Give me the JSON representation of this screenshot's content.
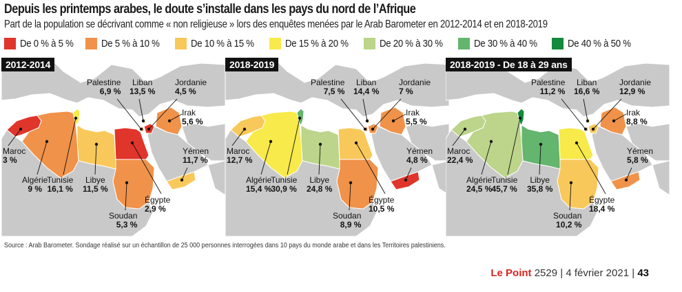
{
  "header": {
    "title": "Depuis les printemps arabes, le doute s’installe dans les pays du nord de l’Afrique",
    "subtitle": "Part de la population se décrivant comme « non religieuse » lors des enquêtes menées par le Arab Barometer en 2012-2014 et en 2018-2019"
  },
  "legend": [
    {
      "label": "De 0 % à 5 %",
      "color": "#e0352b"
    },
    {
      "label": "De 5 % à 10 %",
      "color": "#f0924a"
    },
    {
      "label": "De 10 % à 15 %",
      "color": "#f8c85a"
    },
    {
      "label": "De 15 % à 20 %",
      "color": "#f7ea4a"
    },
    {
      "label": "De 20 % à 30 %",
      "color": "#bcd58a"
    },
    {
      "label": "De 30 % à 40 %",
      "color": "#64b56e"
    },
    {
      "label": "De 40 % à 50 %",
      "color": "#138a3c"
    }
  ],
  "maps": [
    {
      "title": "2012-2014",
      "countries": {
        "maroc": {
          "name": "Maroc",
          "value": "3 %",
          "color": "#e0352b"
        },
        "algerie": {
          "name": "Algérie",
          "value": "9 %",
          "color": "#f0924a"
        },
        "tunisie": {
          "name": "Tunisie",
          "value": "16,1 %",
          "color": "#f7ea4a"
        },
        "libye": {
          "name": "Libye",
          "value": "11,5 %",
          "color": "#f8c85a"
        },
        "egypte": {
          "name": "Égypte",
          "value": "2,9 %",
          "color": "#e0352b"
        },
        "soudan": {
          "name": "Soudan",
          "value": "5,3 %",
          "color": "#f0924a"
        },
        "palestine": {
          "name": "Palestine",
          "value": "6,9 %",
          "color": "#f0924a"
        },
        "liban": {
          "name": "Liban",
          "value": "13,5 %",
          "color": "#f8c85a"
        },
        "jordanie": {
          "name": "Jordanie",
          "value": "4,5 %",
          "color": "#e0352b"
        },
        "irak": {
          "name": "Irak",
          "value": "5,6 %",
          "color": "#f0924a"
        },
        "yemen": {
          "name": "Yémen",
          "value": "11,7 %",
          "color": "#f8c85a"
        }
      }
    },
    {
      "title": "2018-2019",
      "countries": {
        "maroc": {
          "name": "Maroc",
          "value": "12,7 %",
          "color": "#f8c85a"
        },
        "algerie": {
          "name": "Algérie",
          "value": "15,4 %",
          "color": "#f7ea4a"
        },
        "tunisie": {
          "name": "Tunisie",
          "value": "30,9 %",
          "color": "#64b56e"
        },
        "libye": {
          "name": "Libye",
          "value": "24,8 %",
          "color": "#bcd58a"
        },
        "egypte": {
          "name": "Égypte",
          "value": "10,5 %",
          "color": "#f8c85a"
        },
        "soudan": {
          "name": "Soudan",
          "value": "8,9 %",
          "color": "#f0924a"
        },
        "palestine": {
          "name": "Palestine",
          "value": "7,5 %",
          "color": "#f0924a"
        },
        "liban": {
          "name": "Liban",
          "value": "14,4 %",
          "color": "#f8c85a"
        },
        "jordanie": {
          "name": "Jordanie",
          "value": "7 %",
          "color": "#f0924a"
        },
        "irak": {
          "name": "Irak",
          "value": "5,5 %",
          "color": "#f0924a"
        },
        "yemen": {
          "name": "Yémen",
          "value": "4,8 %",
          "color": "#e0352b"
        }
      }
    },
    {
      "title": "2018-2019 - De 18 à 29 ans",
      "countries": {
        "maroc": {
          "name": "Maroc",
          "value": "22,4 %",
          "color": "#bcd58a"
        },
        "algerie": {
          "name": "Algérie",
          "value": "24,5 %",
          "color": "#bcd58a"
        },
        "tunisie": {
          "name": "Tunisie",
          "value": "45,7 %",
          "color": "#138a3c"
        },
        "libye": {
          "name": "Libye",
          "value": "35,8 %",
          "color": "#64b56e"
        },
        "egypte": {
          "name": "Égypte",
          "value": "18,4 %",
          "color": "#f7ea4a"
        },
        "soudan": {
          "name": "Soudan",
          "value": "10,2 %",
          "color": "#f8c85a"
        },
        "palestine": {
          "name": "Palestine",
          "value": "11,2 %",
          "color": "#f8c85a"
        },
        "liban": {
          "name": "Liban",
          "value": "16,6 %",
          "color": "#f7ea4a"
        },
        "jordanie": {
          "name": "Jordanie",
          "value": "12,9 %",
          "color": "#f8c85a"
        },
        "irak": {
          "name": "Irak",
          "value": "8,8 %",
          "color": "#f0924a"
        },
        "yemen": {
          "name": "Yémen",
          "value": "5,8 %",
          "color": "#f0924a"
        }
      }
    }
  ],
  "source": "Source : Arab Barometer. Sondage réalisé sur un échantillon de 25 000 personnes interrogées dans 10 pays du monde arabe et dans les Territoires palestiniens.",
  "footer": {
    "brand": "Le Point",
    "issue": "2529",
    "date": "4 février 2021",
    "page": "43"
  },
  "colors": {
    "land": "#c9c9c9",
    "sea": "#ffffff",
    "border": "#ffffff"
  }
}
